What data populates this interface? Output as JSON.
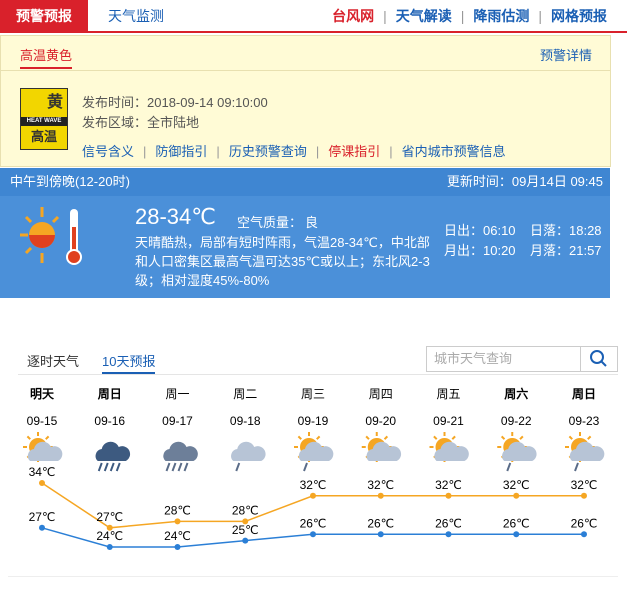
{
  "nav": {
    "active": "预警预报",
    "tab2": "天气监测",
    "links": [
      "台风网",
      "天气解读",
      "降雨估测",
      "网格预报"
    ]
  },
  "alert": {
    "tab": "高温黄色",
    "detail": "预警详情",
    "icon": {
      "color_word": "黄",
      "en": "HEAT WAVE",
      "cn": "高温"
    },
    "time": "发布时间：2018-09-14 09:10:00",
    "area": "发布区域：全市陆地",
    "links": [
      "信号含义",
      "防御指引",
      "历史预警查询",
      "停课指引",
      "省内城市预警信息"
    ]
  },
  "current": {
    "period": "中午到傍晚(12-20时)",
    "updated": "更新时间：09月14日 09:45",
    "temp": "28-34℃",
    "aq_label": "空气质量：",
    "aq": "良",
    "desc": "天晴酷热，局部有短时阵雨，气温28-34℃，中北部和人口密集区最高气温可达35℃或以上；东北风2-3级；相对湿度45%-80%",
    "sunrise": "日出：06:10",
    "sunset": "日落：18:28",
    "moonrise": "月出：10:20",
    "moonset": "月落：21:57"
  },
  "forecast": {
    "tabs": [
      "逐时天气",
      "10天预报"
    ],
    "search": "城市天气查询"
  },
  "chart_data": {
    "type": "line",
    "day_names": [
      "明天",
      "周日",
      "周一",
      "周二",
      "周三",
      "周四",
      "周五",
      "周六",
      "周日"
    ],
    "categories": [
      "09-15",
      "09-16",
      "09-17",
      "09-18",
      "09-19",
      "09-20",
      "09-21",
      "09-22",
      "09-23"
    ],
    "series": [
      {
        "color": "#f5a623",
        "values": [
          34,
          27,
          28,
          28,
          32,
          32,
          32,
          32,
          32
        ],
        "value_labels": [
          "34℃",
          "27℃",
          "28℃",
          "28℃",
          "32℃",
          "32℃",
          "32℃",
          "32℃",
          "32℃"
        ]
      },
      {
        "color": "#2b7fd6",
        "values": [
          27,
          24,
          24,
          25,
          26,
          26,
          26,
          26,
          26
        ],
        "value_labels": [
          "27℃",
          "24℃",
          "24℃",
          "25℃",
          "26℃",
          "26℃",
          "26℃",
          "26℃",
          "26℃"
        ]
      }
    ]
  }
}
